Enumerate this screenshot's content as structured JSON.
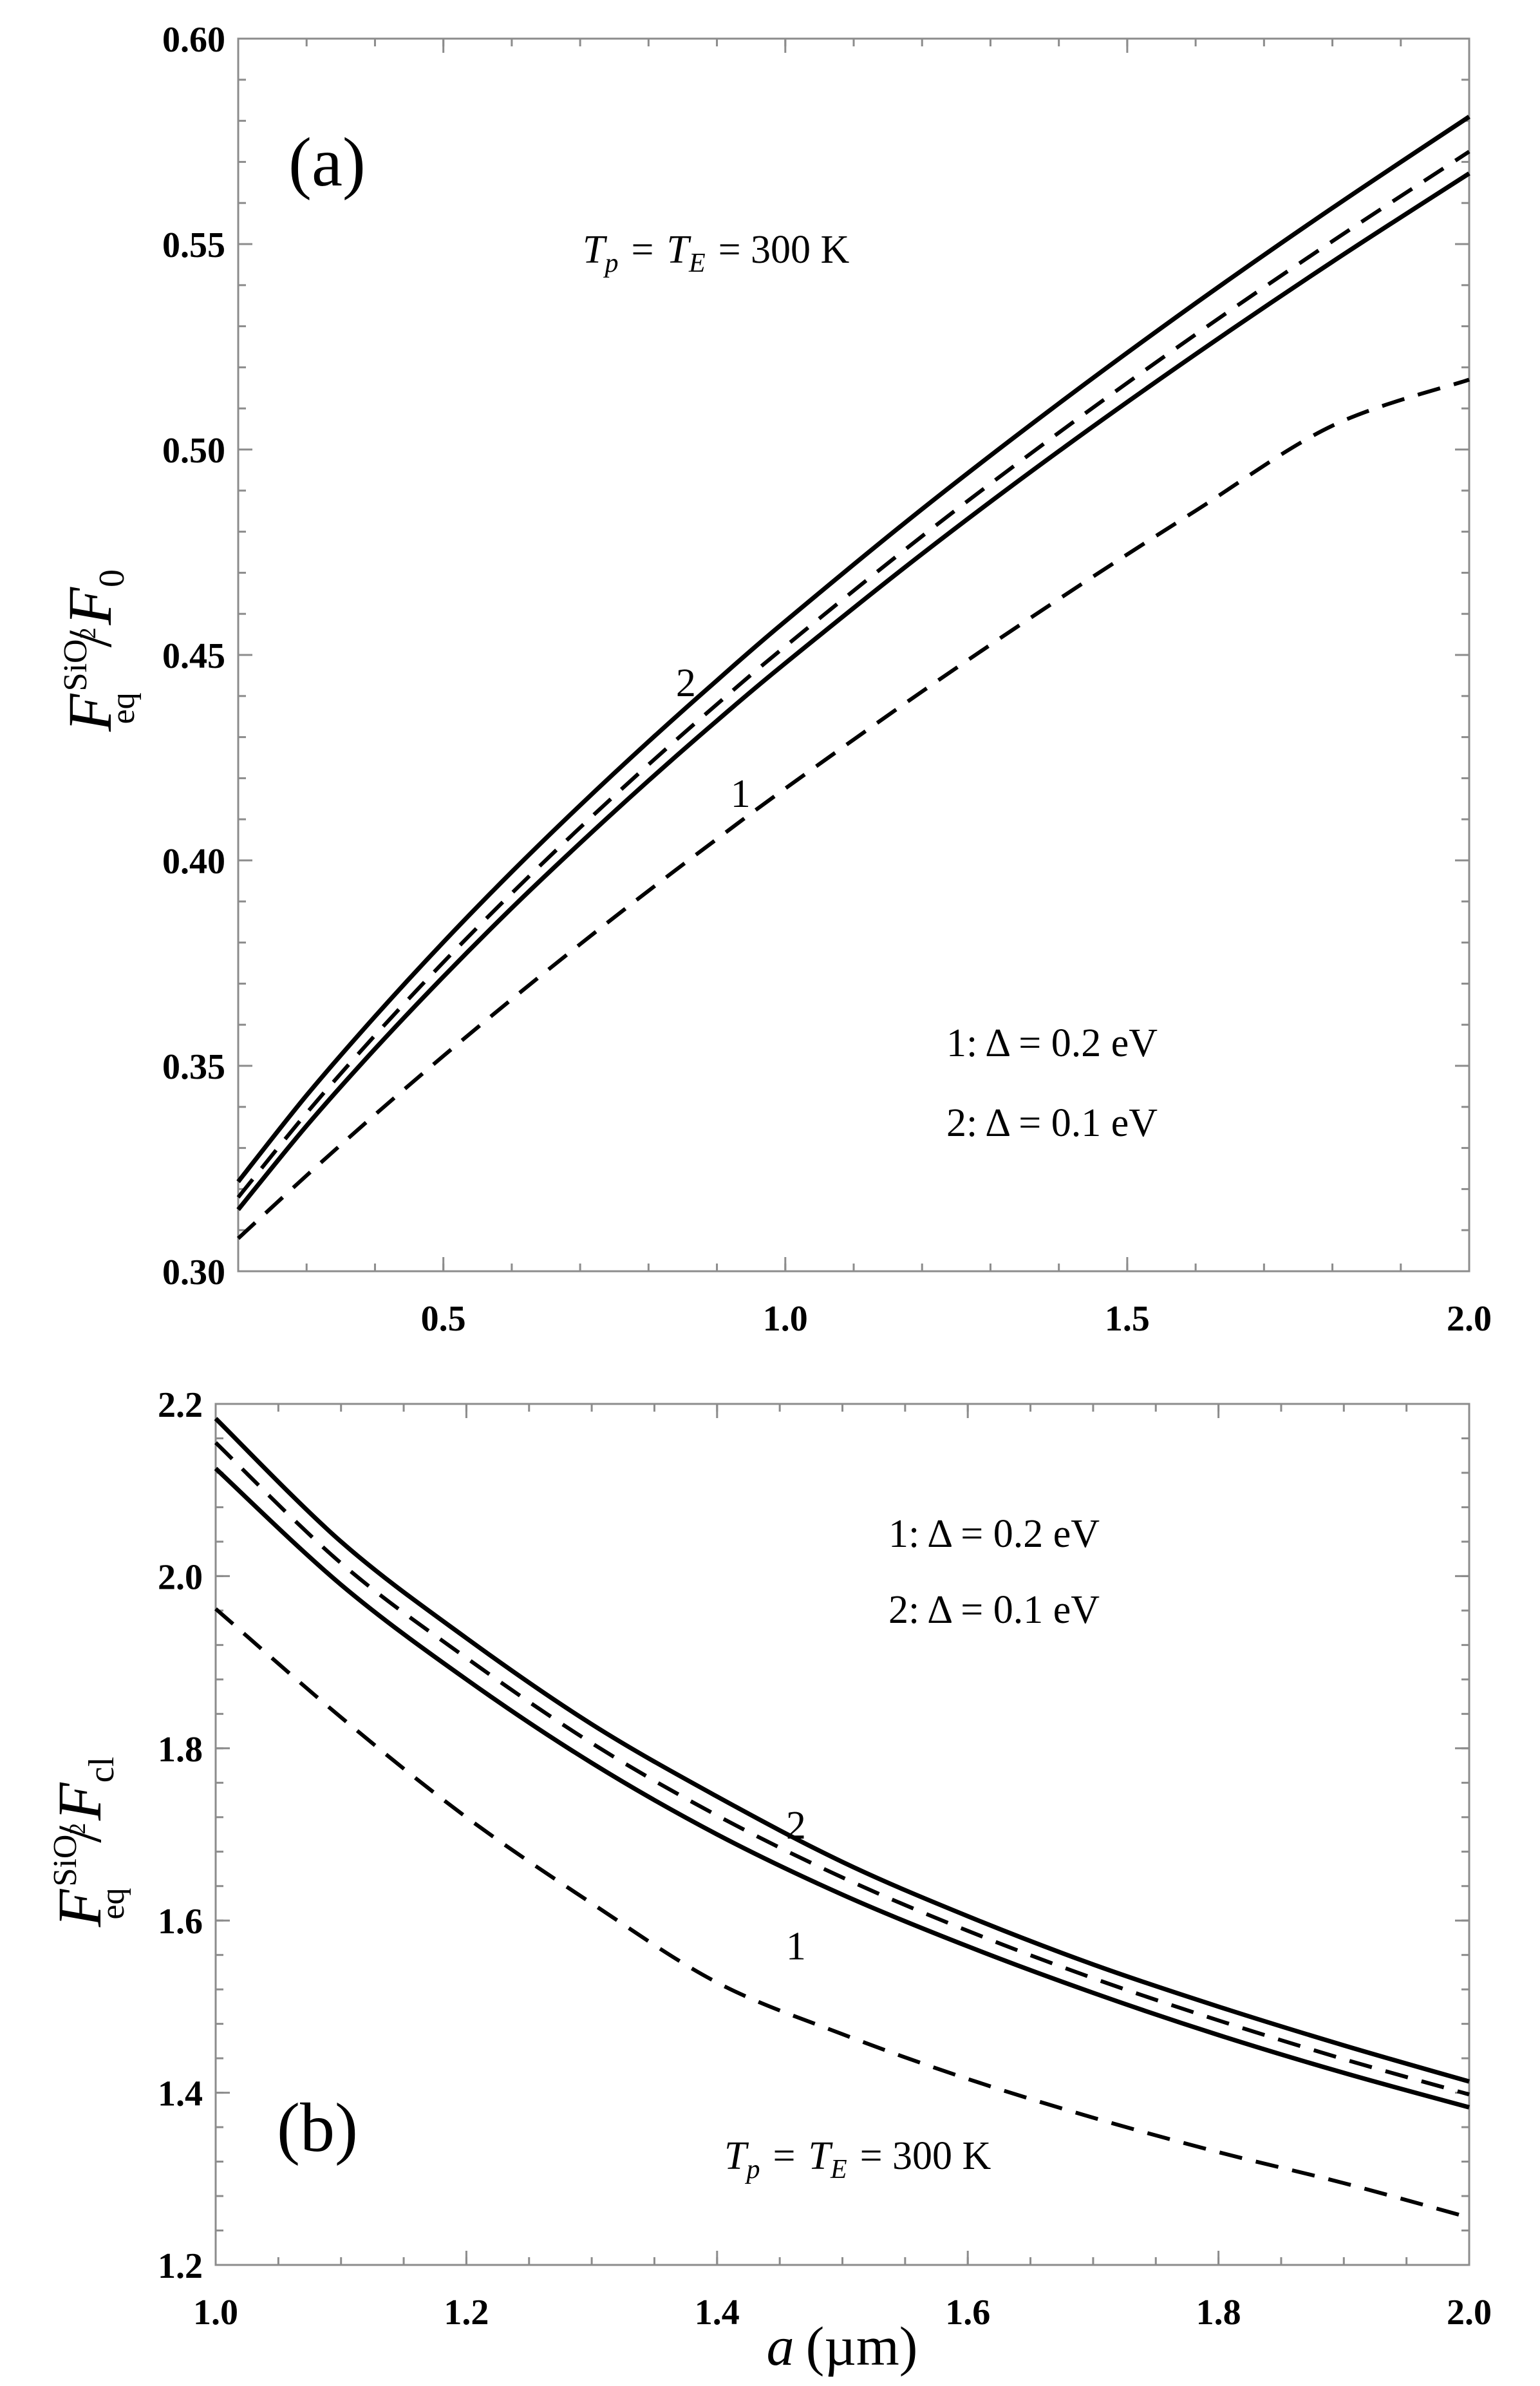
{
  "figure": {
    "xlabel_symbol": "a",
    "xlabel_unit": "(µm)"
  },
  "chart_data": [
    {
      "panel": "(a)",
      "type": "line",
      "xlim": [
        0.2,
        2.0
      ],
      "ylim": [
        0.3,
        0.6
      ],
      "xticks": [
        "0.5",
        "1.0",
        "1.5",
        "2.0"
      ],
      "yticks": [
        "0.30",
        "0.35",
        "0.40",
        "0.45",
        "0.50",
        "0.55",
        "0.60"
      ],
      "ylabel": {
        "F": "F",
        "sup": "SiO",
        "sup_sub": "2",
        "sub": "eq",
        "slash": "/",
        "denom": "F",
        "denom_sub": "0"
      },
      "temperature_label": {
        "tp": "T",
        "tp_sub": "p",
        "eq1": "=",
        "te": "T",
        "te_sub": "E",
        "rest": "= 300 K"
      },
      "legend": [
        "1:  Δ = 0.2 eV",
        "2:  Δ = 0.1 eV"
      ],
      "curve_labels": [
        {
          "text": "2",
          "x": 0.84,
          "y": 0.44
        },
        {
          "text": "1",
          "x": 0.92,
          "y": 0.413
        }
      ],
      "series": [
        {
          "name": "2",
          "style": "solid",
          "x": [
            0.2,
            0.3,
            0.4,
            0.5,
            0.6,
            0.7,
            0.8,
            0.9,
            1.0,
            1.2,
            1.4,
            1.6,
            1.8,
            2.0
          ],
          "y": [
            0.3218,
            0.3428,
            0.362,
            0.3801,
            0.3972,
            0.4134,
            0.4289,
            0.4438,
            0.4582,
            0.4855,
            0.5112,
            0.5356,
            0.5588,
            0.581
          ]
        },
        {
          "name": "dashed-upper",
          "style": "dashed",
          "x": [
            0.2,
            0.3,
            0.4,
            0.5,
            0.6,
            0.7,
            0.8,
            0.9,
            1.0,
            1.2,
            1.4,
            1.6,
            1.8,
            2.0
          ],
          "y": [
            0.318,
            0.3385,
            0.3574,
            0.3752,
            0.392,
            0.408,
            0.4233,
            0.438,
            0.4521,
            0.4789,
            0.5041,
            0.528,
            0.5507,
            0.5725
          ]
        },
        {
          "name": "1",
          "style": "solid",
          "x": [
            0.2,
            0.3,
            0.4,
            0.5,
            0.6,
            0.7,
            0.8,
            0.9,
            1.0,
            1.2,
            1.4,
            1.6,
            1.8,
            2.0
          ],
          "y": [
            0.315,
            0.3354,
            0.3541,
            0.3717,
            0.3884,
            0.4042,
            0.4194,
            0.434,
            0.448,
            0.4746,
            0.4996,
            0.5232,
            0.5457,
            0.5672
          ]
        },
        {
          "name": "dashed-lower",
          "style": "dashed",
          "x": [
            0.2,
            0.3,
            0.4,
            0.5,
            0.6,
            0.7,
            0.8,
            0.9,
            1.0,
            1.2,
            1.4,
            1.6,
            1.8,
            2.0
          ],
          "y": [
            0.308,
            0.3233,
            0.3381,
            0.3524,
            0.3662,
            0.3796,
            0.3926,
            0.4052,
            0.4175,
            0.4411,
            0.4636,
            0.4851,
            0.5058,
            0.517
          ]
        }
      ]
    },
    {
      "panel": "(b)",
      "type": "line",
      "xlim": [
        1.0,
        2.0
      ],
      "ylim": [
        1.2,
        2.2
      ],
      "xticks": [
        "1.0",
        "1.2",
        "1.4",
        "1.6",
        "1.8",
        "2.0"
      ],
      "yticks": [
        "1.2",
        "1.4",
        "1.6",
        "1.8",
        "2.0",
        "2.2"
      ],
      "ylabel": {
        "F": "F",
        "sup": "SiO",
        "sup_sub": "2",
        "sub": "eq",
        "slash": "/",
        "denom": "F",
        "denom_sub": "cl"
      },
      "temperature_label": {
        "tp": "T",
        "tp_sub": "p",
        "eq1": "=",
        "te": "T",
        "te_sub": "E",
        "rest": "= 300 K"
      },
      "legend": [
        "1: Δ = 0.2 eV",
        "2: Δ = 0.1 eV"
      ],
      "curve_labels": [
        {
          "text": "2",
          "x": 1.455,
          "y": 1.695
        },
        {
          "text": "1",
          "x": 1.455,
          "y": 1.555
        }
      ],
      "series": [
        {
          "name": "2",
          "style": "solid",
          "x": [
            1.0,
            1.1,
            1.2,
            1.3,
            1.4,
            1.5,
            1.6,
            1.7,
            1.8,
            1.9,
            2.0
          ],
          "y": [
            2.183,
            2.04,
            1.928,
            1.828,
            1.744,
            1.668,
            1.605,
            1.549,
            1.5,
            1.455,
            1.413
          ]
        },
        {
          "name": "dashed-upper",
          "style": "dashed",
          "x": [
            1.0,
            1.1,
            1.2,
            1.3,
            1.4,
            1.5,
            1.6,
            1.7,
            1.8,
            1.9,
            2.0
          ],
          "y": [
            2.155,
            2.015,
            1.905,
            1.806,
            1.722,
            1.65,
            1.588,
            1.533,
            1.484,
            1.439,
            1.398
          ]
        },
        {
          "name": "1",
          "style": "solid",
          "x": [
            1.0,
            1.1,
            1.2,
            1.3,
            1.4,
            1.5,
            1.6,
            1.7,
            1.8,
            1.9,
            2.0
          ],
          "y": [
            2.125,
            1.99,
            1.88,
            1.783,
            1.7,
            1.63,
            1.57,
            1.516,
            1.467,
            1.423,
            1.383
          ]
        },
        {
          "name": "dashed-lower",
          "style": "dashed",
          "x": [
            1.0,
            1.1,
            1.2,
            1.3,
            1.4,
            1.5,
            1.6,
            1.7,
            1.8,
            1.9,
            2.0
          ],
          "y": [
            1.962,
            1.836,
            1.72,
            1.62,
            1.528,
            1.468,
            1.416,
            1.371,
            1.331,
            1.295,
            1.255
          ]
        }
      ]
    }
  ]
}
